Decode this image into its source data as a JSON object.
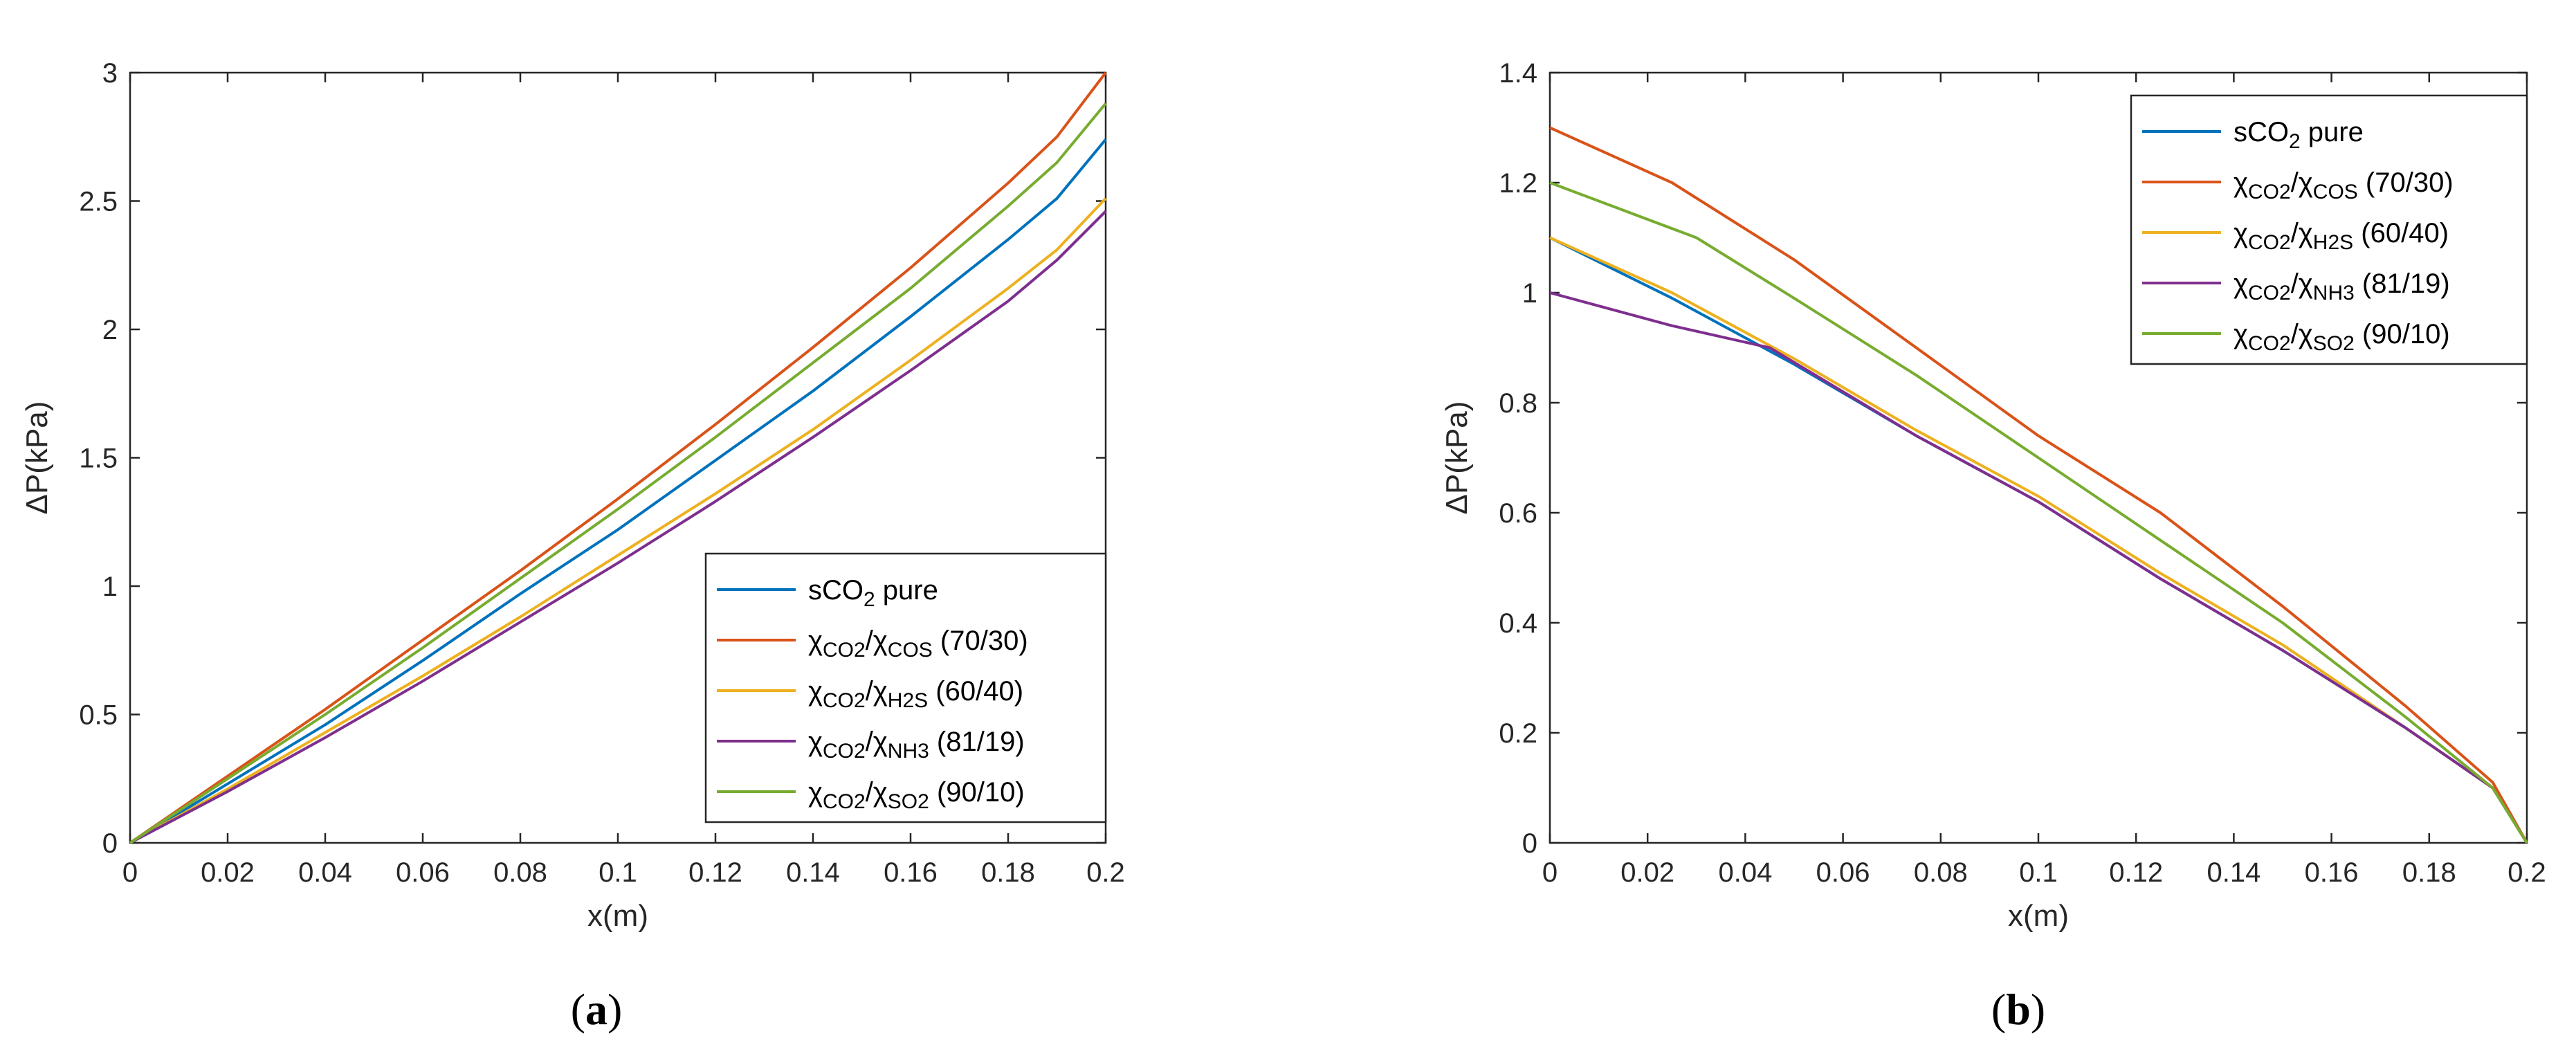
{
  "chart_data": [
    {
      "panel_label": "(a)",
      "panel_letter": "a",
      "type": "line",
      "xlabel": "x(m)",
      "ylabel": "ΔP(kPa)",
      "xlim": [
        0,
        0.2
      ],
      "ylim": [
        0,
        3
      ],
      "xticks": [
        "0",
        "0.02",
        "0.04",
        "0.06",
        "0.08",
        "0.1",
        "0.12",
        "0.14",
        "0.16",
        "0.18",
        "0.2"
      ],
      "yticks": [
        "0",
        "0.5",
        "1",
        "1.5",
        "2",
        "2.5",
        "3"
      ],
      "legend_position": "bottom-right",
      "series": [
        {
          "name": "sCO2 pure",
          "color": "#0072BD",
          "x": [
            0,
            0.02,
            0.04,
            0.06,
            0.08,
            0.1,
            0.12,
            0.14,
            0.16,
            0.18,
            0.19,
            0.2
          ],
          "y": [
            0,
            0.23,
            0.46,
            0.71,
            0.97,
            1.22,
            1.49,
            1.76,
            2.05,
            2.35,
            2.51,
            2.74
          ]
        },
        {
          "name": "χCO2/χCOS (70/30)",
          "color": "#D95319",
          "x": [
            0,
            0.02,
            0.04,
            0.06,
            0.08,
            0.1,
            0.12,
            0.14,
            0.16,
            0.18,
            0.19,
            0.2
          ],
          "y": [
            0,
            0.26,
            0.52,
            0.79,
            1.06,
            1.34,
            1.63,
            1.93,
            2.24,
            2.57,
            2.75,
            3.0
          ]
        },
        {
          "name": "χCO2/χH2S (60/40)",
          "color": "#EDB120",
          "x": [
            0,
            0.02,
            0.04,
            0.06,
            0.08,
            0.1,
            0.12,
            0.14,
            0.16,
            0.18,
            0.19,
            0.2
          ],
          "y": [
            0,
            0.21,
            0.43,
            0.65,
            0.88,
            1.12,
            1.36,
            1.61,
            1.88,
            2.16,
            2.31,
            2.51
          ]
        },
        {
          "name": "χCO2/χNH3 (81/19)",
          "color": "#7E2F8E",
          "x": [
            0,
            0.02,
            0.04,
            0.06,
            0.08,
            0.1,
            0.12,
            0.14,
            0.16,
            0.18,
            0.19,
            0.2
          ],
          "y": [
            0,
            0.2,
            0.41,
            0.63,
            0.86,
            1.09,
            1.33,
            1.58,
            1.84,
            2.11,
            2.27,
            2.46
          ]
        },
        {
          "name": "χCO2/χSO2 (90/10)",
          "color": "#77AC30",
          "x": [
            0,
            0.02,
            0.04,
            0.06,
            0.08,
            0.1,
            0.12,
            0.14,
            0.16,
            0.18,
            0.19,
            0.2
          ],
          "y": [
            0,
            0.25,
            0.5,
            0.76,
            1.03,
            1.3,
            1.58,
            1.87,
            2.16,
            2.48,
            2.65,
            2.88
          ]
        }
      ]
    },
    {
      "panel_label": "(b)",
      "panel_letter": "b",
      "type": "line",
      "xlabel": "x(m)",
      "ylabel": "ΔP(kPa)",
      "xlim": [
        0,
        0.2
      ],
      "ylim": [
        0,
        1.4
      ],
      "xticks": [
        "0",
        "0.02",
        "0.04",
        "0.06",
        "0.08",
        "0.1",
        "0.12",
        "0.14",
        "0.16",
        "0.18",
        "0.2"
      ],
      "yticks": [
        "0",
        "0.2",
        "0.4",
        "0.6",
        "0.8",
        "1",
        "1.2",
        "1.4"
      ],
      "legend_position": "top-right",
      "series": [
        {
          "name": "sCO2 pure",
          "color": "#0072BD",
          "x": [
            0,
            0.025,
            0.05,
            0.075,
            0.1,
            0.125,
            0.15,
            0.175,
            0.193,
            0.2
          ],
          "y": [
            1.1,
            0.99,
            0.87,
            0.74,
            0.62,
            0.48,
            0.35,
            0.21,
            0.1,
            0
          ]
        },
        {
          "name": "χCO2/χCOS (70/30)",
          "color": "#D95319",
          "x": [
            0,
            0.025,
            0.05,
            0.075,
            0.1,
            0.125,
            0.15,
            0.175,
            0.193,
            0.2
          ],
          "y": [
            1.3,
            1.2,
            1.06,
            0.9,
            0.74,
            0.6,
            0.43,
            0.25,
            0.11,
            0
          ]
        },
        {
          "name": "χCO2/χH2S (60/40)",
          "color": "#EDB120",
          "x": [
            0,
            0.025,
            0.05,
            0.075,
            0.1,
            0.125,
            0.15,
            0.175,
            0.193,
            0.2
          ],
          "y": [
            1.1,
            1.0,
            0.88,
            0.75,
            0.63,
            0.49,
            0.36,
            0.21,
            0.1,
            0
          ]
        },
        {
          "name": "χCO2/χNH3 (81/19)",
          "color": "#7E2F8E",
          "x": [
            0,
            0.025,
            0.045,
            0.075,
            0.1,
            0.125,
            0.15,
            0.175,
            0.193,
            0.2
          ],
          "y": [
            1.0,
            0.94,
            0.9,
            0.74,
            0.62,
            0.48,
            0.35,
            0.21,
            0.1,
            0
          ]
        },
        {
          "name": "χCO2/χSO2 (90/10)",
          "color": "#77AC30",
          "x": [
            0,
            0.03,
            0.05,
            0.075,
            0.1,
            0.125,
            0.15,
            0.175,
            0.193,
            0.2
          ],
          "y": [
            1.2,
            1.1,
            0.99,
            0.85,
            0.7,
            0.55,
            0.4,
            0.23,
            0.1,
            0
          ]
        }
      ]
    }
  ],
  "legend_entries": [
    {
      "base": "sCO",
      "sub1": "2",
      "mid": " pure",
      "sub2": "",
      "tail": ""
    },
    {
      "base": "χ",
      "sub1": "CO2",
      "mid": "/χ",
      "sub2": "COS",
      "tail": " (70/30)"
    },
    {
      "base": "χ",
      "sub1": "CO2",
      "mid": "/χ",
      "sub2": "H2S",
      "tail": " (60/40)"
    },
    {
      "base": "χ",
      "sub1": "CO2",
      "mid": "/χ",
      "sub2": "NH3",
      "tail": " (81/19)"
    },
    {
      "base": "χ",
      "sub1": "CO2",
      "mid": "/χ",
      "sub2": "SO2",
      "tail": " (90/10)"
    }
  ]
}
